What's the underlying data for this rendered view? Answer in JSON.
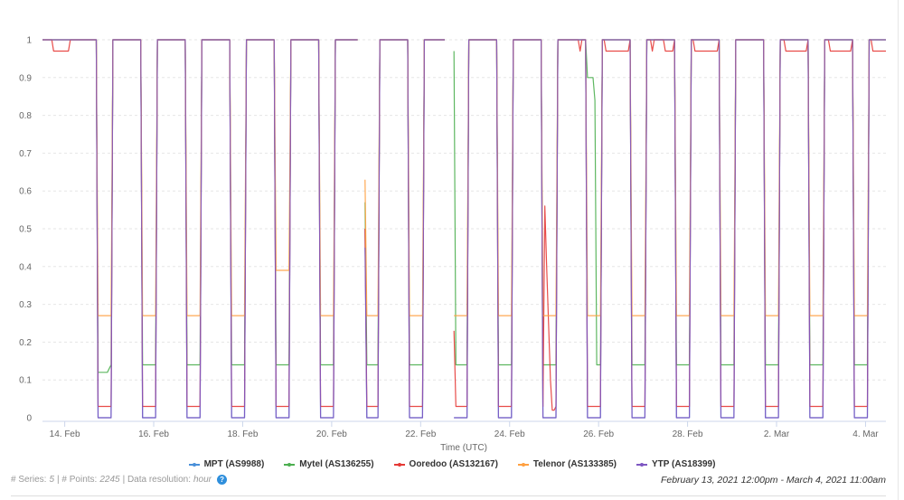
{
  "chart_data": {
    "type": "line",
    "title": "",
    "xlabel": "Time (UTC)",
    "ylabel": "",
    "ylim": [
      0,
      1
    ],
    "yticks": [
      "0",
      "0.1",
      "0.2",
      "0.3",
      "0.4",
      "0.5",
      "0.6",
      "0.7",
      "0.8",
      "0.9",
      "1"
    ],
    "xrange": [
      "2021-02-13T12:00Z",
      "2021-03-04T11:00Z"
    ],
    "xticks": [
      {
        "label": "14. Feb",
        "date": "2021-02-14"
      },
      {
        "label": "16. Feb",
        "date": "2021-02-16"
      },
      {
        "label": "18. Feb",
        "date": "2021-02-18"
      },
      {
        "label": "20. Feb",
        "date": "2021-02-20"
      },
      {
        "label": "22. Feb",
        "date": "2021-02-22"
      },
      {
        "label": "24. Feb",
        "date": "2021-02-24"
      },
      {
        "label": "26. Feb",
        "date": "2021-02-26"
      },
      {
        "label": "28. Feb",
        "date": "2021-02-28"
      },
      {
        "label": "2. Mar",
        "date": "2021-03-02"
      },
      {
        "label": "4. Mar",
        "date": "2021-03-04"
      }
    ],
    "grid": true,
    "legend_position": "bottom",
    "resolution": "hour",
    "normal_value": 1,
    "nightly_outages": {
      "first_day": "2021-02-14",
      "last_day": "2021-03-03",
      "drop_start_hour_utc": 17,
      "low_from_hour_utc": 18,
      "low_until_next_day_hour_utc": 1,
      "restored_next_day_hour_utc": 2
    },
    "gaps": [
      [
        "2021-02-20T15:00Z",
        "2021-02-20T17:00Z"
      ],
      [
        "2021-02-22T14:00Z",
        "2021-02-22T17:00Z"
      ]
    ],
    "series": [
      {
        "name": "MPT (AS9988)",
        "color": "#4a90d9",
        "outage_level": 0,
        "overrides": [
          [
            "2021-02-20T18:00Z",
            0.5
          ],
          [
            "2021-02-22T18:00Z",
            0
          ]
        ]
      },
      {
        "name": "Mytel (AS136255)",
        "color": "#4caf50",
        "outage_level": 0.14,
        "overrides": [
          [
            "2021-02-14T18:00Z",
            0.12
          ],
          [
            "2021-02-14T19:00Z",
            0.12
          ],
          [
            "2021-02-14T20:00Z",
            0.12
          ],
          [
            "2021-02-14T21:00Z",
            0.12
          ],
          [
            "2021-02-14T22:00Z",
            0.12
          ],
          [
            "2021-02-14T23:00Z",
            0.12
          ],
          [
            "2021-02-15T00:00Z",
            0.13
          ],
          [
            "2021-02-20T18:00Z",
            0.57
          ],
          [
            "2021-02-22T18:00Z",
            0.97
          ],
          [
            "2021-02-25T17:00Z",
            1
          ],
          [
            "2021-02-25T18:00Z",
            0.9
          ],
          [
            "2021-02-25T19:00Z",
            0.9
          ],
          [
            "2021-02-25T20:00Z",
            0.9
          ],
          [
            "2021-02-25T21:00Z",
            0.9
          ],
          [
            "2021-02-25T22:00Z",
            0.84
          ]
        ]
      },
      {
        "name": "Ooredoo (AS132167)",
        "color": "#e53935",
        "outage_level": 0.03,
        "overrides": [
          [
            "2021-02-20T18:00Z",
            0.5
          ],
          [
            "2021-02-22T18:00Z",
            0.23
          ],
          [
            "2021-02-24T19:00Z",
            0.56
          ],
          [
            "2021-02-24T20:00Z",
            0.4
          ],
          [
            "2021-02-24T21:00Z",
            0.25
          ],
          [
            "2021-02-24T22:00Z",
            0.1
          ],
          [
            "2021-02-24T23:00Z",
            0.02
          ],
          [
            "2021-02-25T00:00Z",
            0.02
          ]
        ],
        "reduced_periods": [
          [
            "2021-02-13T18:00Z",
            "2021-02-14T02:00Z",
            0.97
          ],
          [
            "2021-02-25T14:00Z",
            "2021-02-25T14:00Z",
            0.97
          ],
          [
            "2021-02-26T04:00Z",
            "2021-02-26T16:00Z",
            0.97
          ],
          [
            "2021-02-27T05:00Z",
            "2021-02-27T05:00Z",
            0.97
          ],
          [
            "2021-02-27T12:00Z",
            "2021-02-27T16:00Z",
            0.97
          ],
          [
            "2021-02-28T04:00Z",
            "2021-02-28T16:00Z",
            0.97
          ],
          [
            "2021-03-02T05:00Z",
            "2021-03-02T16:00Z",
            0.97
          ],
          [
            "2021-03-03T05:00Z",
            "2021-03-03T16:00Z",
            0.97
          ],
          [
            "2021-03-04T04:00Z",
            "2021-03-04T11:00Z",
            0.97
          ]
        ]
      },
      {
        "name": "Telenor (AS133385)",
        "color": "#ffa040",
        "outage_level": 0.27,
        "overrides": [
          [
            "2021-02-18T18:00Z",
            0.39
          ],
          [
            "2021-02-18T19:00Z",
            0.39
          ],
          [
            "2021-02-18T20:00Z",
            0.39
          ],
          [
            "2021-02-18T21:00Z",
            0.39
          ],
          [
            "2021-02-18T22:00Z",
            0.39
          ],
          [
            "2021-02-18T23:00Z",
            0.39
          ],
          [
            "2021-02-19T00:00Z",
            0.39
          ],
          [
            "2021-02-19T01:00Z",
            0.39
          ],
          [
            "2021-02-20T18:00Z",
            0.63
          ],
          [
            "2021-02-22T18:00Z",
            0.27
          ]
        ]
      },
      {
        "name": "YTP (AS18399)",
        "color": "#7e57c2",
        "outage_level": 0,
        "overrides": [
          [
            "2021-02-20T18:00Z",
            0.45
          ],
          [
            "2021-02-22T18:00Z",
            0
          ]
        ]
      }
    ]
  },
  "footer": {
    "series_label": "# Series:",
    "series_count": "5",
    "points_label": "| # Points:",
    "points_count": "2245",
    "resolution_label": "| Data resolution:",
    "resolution_value": "hour",
    "info_icon": "info-icon",
    "info_glyph": "?",
    "date_range": "February 13, 2021 12:00pm - March 4, 2021 11:00am"
  }
}
